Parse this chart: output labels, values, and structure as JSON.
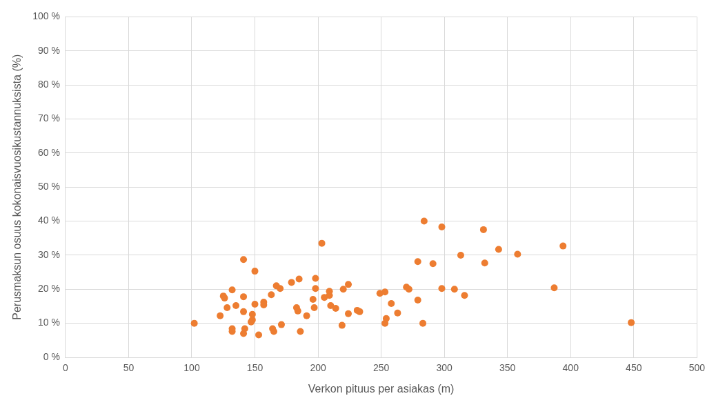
{
  "chart_data": {
    "type": "scatter",
    "xlabel": "Verkon pituus per asiakas (m)",
    "ylabel": "Perusmaksun osuus kokonaisvuosikustannuksista (%)",
    "x": [
      102,
      122.5,
      125,
      126,
      128,
      132,
      132,
      132,
      135,
      141,
      141,
      141,
      141,
      142,
      147,
      148,
      148,
      150,
      150,
      153,
      157,
      157,
      163,
      164,
      165,
      167,
      170,
      171,
      179,
      185,
      183,
      184,
      186,
      191,
      196,
      197,
      198,
      198,
      203,
      205,
      209,
      209,
      210,
      214,
      219,
      220,
      224,
      224,
      231,
      233,
      249,
      253,
      253,
      254,
      258,
      263,
      270,
      272,
      279,
      279,
      283,
      284,
      291,
      298,
      298,
      313,
      308,
      316,
      331,
      332,
      343,
      358,
      387,
      394,
      448
    ],
    "series": [
      {
        "color": "#ed7d31",
        "values": [
          10,
          12.2,
          18,
          17.4,
          14.6,
          19.8,
          8.4,
          7.6,
          15.2,
          13.4,
          28.7,
          17.8,
          7,
          8.4,
          10.4,
          11,
          12.6,
          25.3,
          15.6,
          6.6,
          16.2,
          15.4,
          18.4,
          8.4,
          7.6,
          21,
          20.2,
          9.6,
          22,
          23,
          14.6,
          13.6,
          7.6,
          12.2,
          17,
          14.6,
          23.2,
          20.2,
          33.5,
          17.6,
          18.2,
          19.4,
          15.2,
          14.4,
          9.4,
          20,
          21.4,
          12.8,
          13.8,
          13.4,
          18.8,
          19.2,
          10,
          11.4,
          15.8,
          13,
          20.6,
          20,
          28.1,
          16.8,
          10,
          40,
          27.5,
          38.3,
          20.2,
          30,
          20,
          18.2,
          37.5,
          27.7,
          31.7,
          30.3,
          20.4,
          32.7,
          10.2
        ]
      }
    ],
    "xlim": [
      0,
      500
    ],
    "xticks": [
      0,
      50,
      100,
      150,
      200,
      250,
      300,
      350,
      400,
      450,
      500
    ],
    "ylim": [
      0,
      100
    ],
    "yticks": [
      {
        "value": 0,
        "label": "0 %"
      },
      {
        "value": 10,
        "label": "10 %"
      },
      {
        "value": 20,
        "label": "20 %"
      },
      {
        "value": 30,
        "label": "30 %"
      },
      {
        "value": 40,
        "label": "40 %"
      },
      {
        "value": 50,
        "label": "50 %"
      },
      {
        "value": 60,
        "label": "60 %"
      },
      {
        "value": 70,
        "label": "70 %"
      },
      {
        "value": 80,
        "label": "80 %"
      },
      {
        "value": 90,
        "label": "90 %"
      },
      {
        "value": 100,
        "label": "100 %"
      }
    ],
    "grid": true,
    "legend": false,
    "marker": "circle"
  }
}
